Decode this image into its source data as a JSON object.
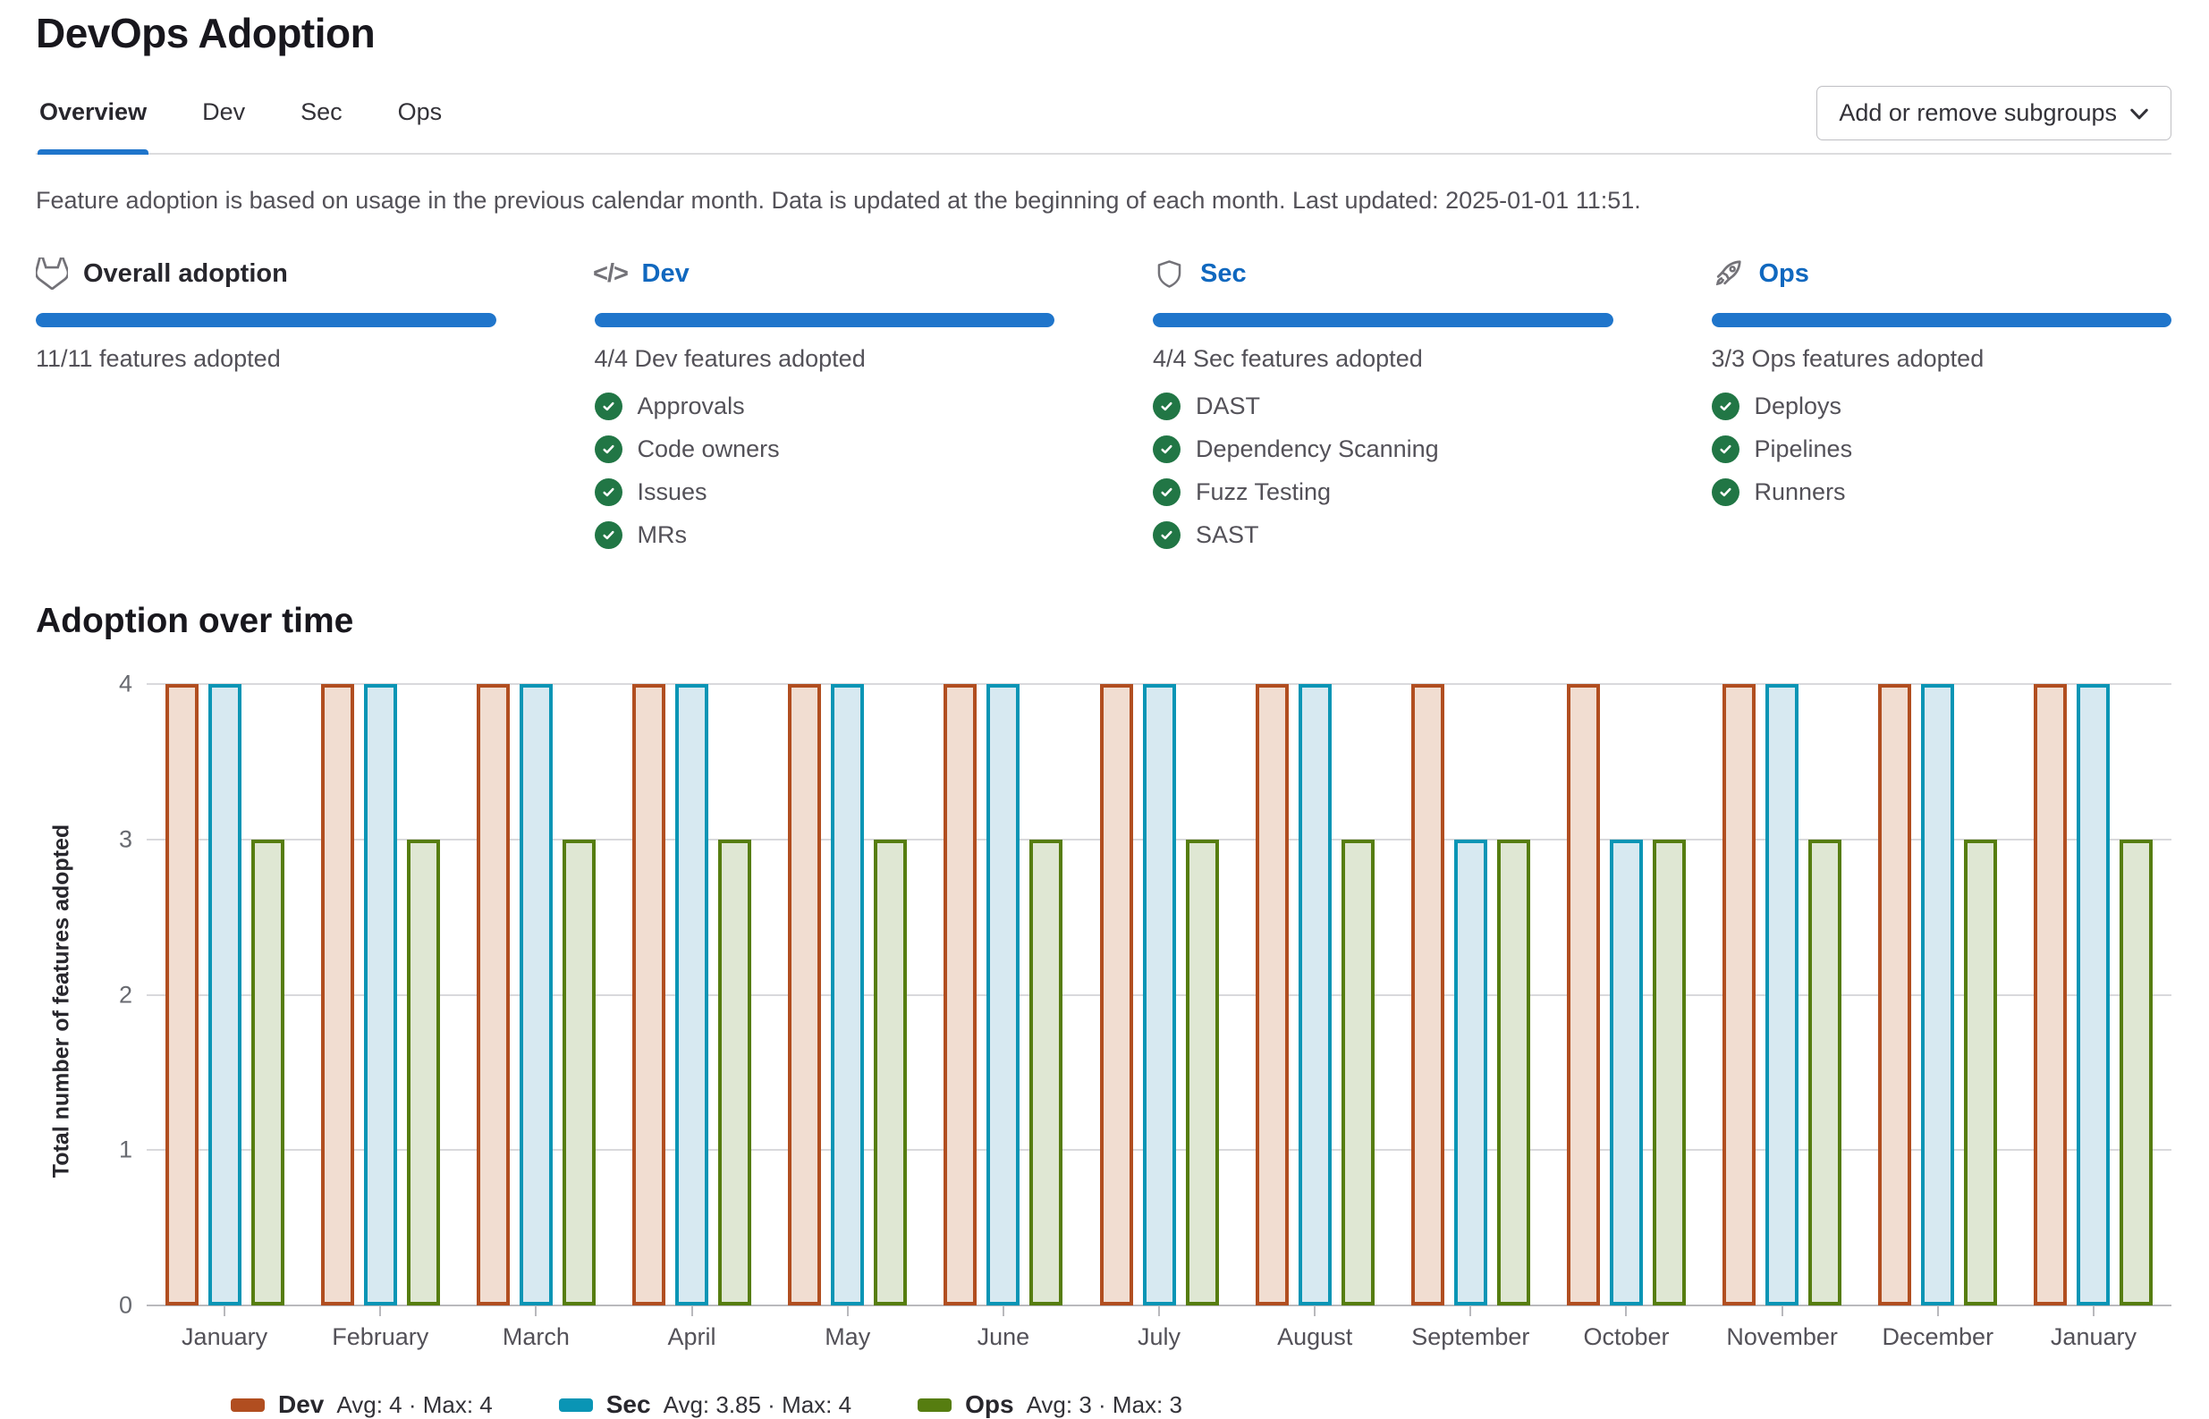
{
  "page": {
    "title": "DevOps Adoption"
  },
  "tabs": [
    {
      "label": "Overview",
      "active": true
    },
    {
      "label": "Dev",
      "active": false
    },
    {
      "label": "Sec",
      "active": false
    },
    {
      "label": "Ops",
      "active": false
    }
  ],
  "toolbar": {
    "add_remove_button": "Add or remove subgroups"
  },
  "description": "Feature adoption is based on usage in the previous calendar month. Data is updated at the beginning of each month. Last updated: 2025-01-01 11:51.",
  "cards": [
    {
      "icon": "tanuki-icon",
      "title": "Overall adoption",
      "progress": 100,
      "summary": "11/11 features adopted",
      "features": []
    },
    {
      "icon": "code-icon",
      "title": "Dev",
      "progress": 100,
      "summary": "4/4 Dev features adopted",
      "features": [
        "Approvals",
        "Code owners",
        "Issues",
        "MRs"
      ]
    },
    {
      "icon": "shield-icon",
      "title": "Sec",
      "progress": 100,
      "summary": "4/4 Sec features adopted",
      "features": [
        "DAST",
        "Dependency Scanning",
        "Fuzz Testing",
        "SAST"
      ]
    },
    {
      "icon": "rocket-icon",
      "title": "Ops",
      "progress": 100,
      "summary": "3/3 Ops features adopted",
      "features": [
        "Deploys",
        "Pipelines",
        "Runners"
      ]
    }
  ],
  "section_title": "Adoption over time",
  "chart_data": {
    "type": "bar",
    "title": "Adoption over time",
    "xlabel": "",
    "ylabel": "Total number of features adopted",
    "ylim": [
      0,
      4
    ],
    "yticks": [
      0,
      1,
      2,
      3,
      4
    ],
    "grid": true,
    "legend_position": "bottom",
    "categories": [
      "January",
      "February",
      "March",
      "April",
      "May",
      "June",
      "July",
      "August",
      "September",
      "October",
      "November",
      "December",
      "January"
    ],
    "series": [
      {
        "name": "Dev",
        "stats": "Avg: 4 · Max: 4",
        "color": "#b14e20",
        "fill": "#f1ddd1",
        "values": [
          4,
          4,
          4,
          4,
          4,
          4,
          4,
          4,
          4,
          4,
          4,
          4,
          4
        ]
      },
      {
        "name": "Sec",
        "stats": "Avg: 3.85 · Max: 4",
        "color": "#0a95b5",
        "fill": "#d7e9f1",
        "values": [
          4,
          4,
          4,
          4,
          4,
          4,
          4,
          4,
          3,
          3,
          4,
          4,
          4
        ]
      },
      {
        "name": "Ops",
        "stats": "Avg: 3 · Max: 3",
        "color": "#567d10",
        "fill": "#dfe7d3",
        "values": [
          3,
          3,
          3,
          3,
          3,
          3,
          3,
          3,
          3,
          3,
          3,
          3,
          3
        ]
      }
    ]
  },
  "colors": {
    "accent": "#1f75cb",
    "link": "#1068bf",
    "check_green": "#217645"
  }
}
